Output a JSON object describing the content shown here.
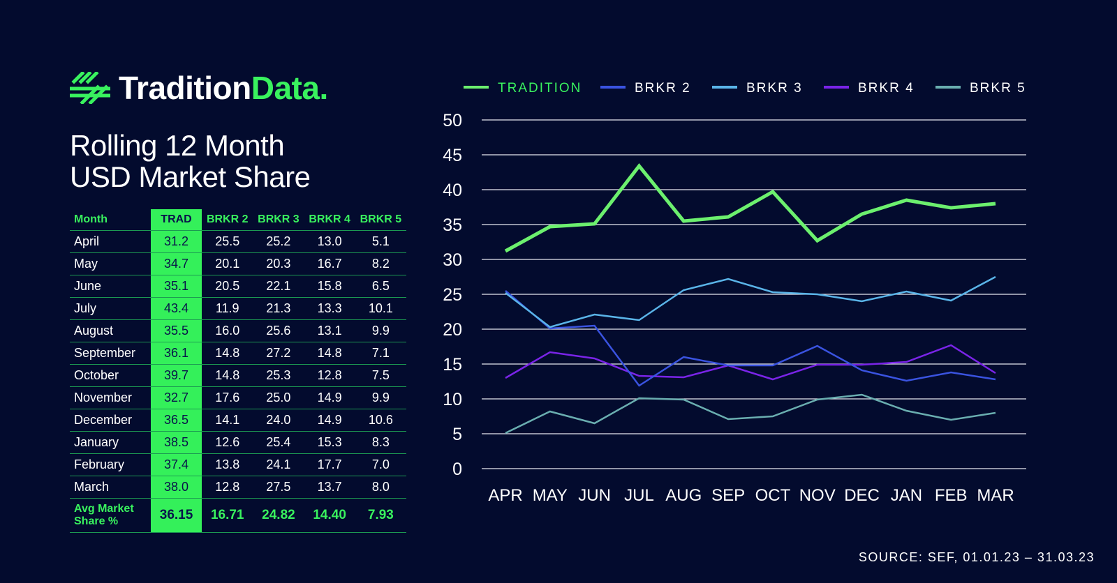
{
  "brand": {
    "word1": "Tradition",
    "word2": "Data."
  },
  "title": {
    "line1": "Rolling 12 Month",
    "line2": "USD Market Share"
  },
  "table": {
    "headers": [
      "Month",
      "TRAD",
      "BRKR 2",
      "BRKR 3",
      "BRKR 4",
      "BRKR 5"
    ],
    "rows": [
      [
        "April",
        "31.2",
        "25.5",
        "25.2",
        "13.0",
        "5.1"
      ],
      [
        "May",
        "34.7",
        "20.1",
        "20.3",
        "16.7",
        "8.2"
      ],
      [
        "June",
        "35.1",
        "20.5",
        "22.1",
        "15.8",
        "6.5"
      ],
      [
        "July",
        "43.4",
        "11.9",
        "21.3",
        "13.3",
        "10.1"
      ],
      [
        "August",
        "35.5",
        "16.0",
        "25.6",
        "13.1",
        "9.9"
      ],
      [
        "September",
        "36.1",
        "14.8",
        "27.2",
        "14.8",
        "7.1"
      ],
      [
        "October",
        "39.7",
        "14.8",
        "25.3",
        "12.8",
        "7.5"
      ],
      [
        "November",
        "32.7",
        "17.6",
        "25.0",
        "14.9",
        "9.9"
      ],
      [
        "December",
        "36.5",
        "14.1",
        "24.0",
        "14.9",
        "10.6"
      ],
      [
        "January",
        "38.5",
        "12.6",
        "25.4",
        "15.3",
        "8.3"
      ],
      [
        "February",
        "37.4",
        "13.8",
        "24.1",
        "17.7",
        "7.0"
      ],
      [
        "March",
        "38.0",
        "12.8",
        "27.5",
        "13.7",
        "8.0"
      ]
    ],
    "avg": {
      "label_line1": "Avg Market",
      "label_line2": "Share %",
      "values": [
        "36.15",
        "16.71",
        "24.82",
        "14.40",
        "7.93"
      ]
    }
  },
  "chart_data": {
    "type": "line",
    "categories": [
      "APR",
      "MAY",
      "JUN",
      "JUL",
      "AUG",
      "SEP",
      "OCT",
      "NOV",
      "DEC",
      "JAN",
      "FEB",
      "MAR"
    ],
    "ylim": [
      0,
      50
    ],
    "yticks": [
      0,
      5,
      10,
      15,
      20,
      25,
      30,
      35,
      40,
      45,
      50
    ],
    "grid": "horizontal",
    "legend_position": "top",
    "series": [
      {
        "name": "TRADITION",
        "color": "#6cf06e",
        "width": 5,
        "values": [
          31.2,
          34.7,
          35.1,
          43.4,
          35.5,
          36.1,
          39.7,
          32.7,
          36.5,
          38.5,
          37.4,
          38.0
        ]
      },
      {
        "name": "BRKR 2",
        "color": "#3a53e0",
        "width": 2.5,
        "values": [
          25.5,
          20.1,
          20.5,
          11.9,
          16.0,
          14.8,
          14.8,
          17.6,
          14.1,
          12.6,
          13.8,
          12.8
        ]
      },
      {
        "name": "BRKR 3",
        "color": "#5ab4e8",
        "width": 2.5,
        "values": [
          25.2,
          20.3,
          22.1,
          21.3,
          25.6,
          27.2,
          25.3,
          25.0,
          24.0,
          25.4,
          24.1,
          27.5
        ]
      },
      {
        "name": "BRKR 4",
        "color": "#7a24e8",
        "width": 2.5,
        "values": [
          13.0,
          16.7,
          15.8,
          13.3,
          13.1,
          14.8,
          12.8,
          14.9,
          14.9,
          15.3,
          17.7,
          13.7
        ]
      },
      {
        "name": "BRKR 5",
        "color": "#6aaeb0",
        "width": 2.5,
        "values": [
          5.1,
          8.2,
          6.5,
          10.1,
          9.9,
          7.1,
          7.5,
          9.9,
          10.6,
          8.3,
          7.0,
          8.0
        ]
      }
    ]
  },
  "source": "SOURCE: SEF, 01.01.23 – 31.03.23"
}
